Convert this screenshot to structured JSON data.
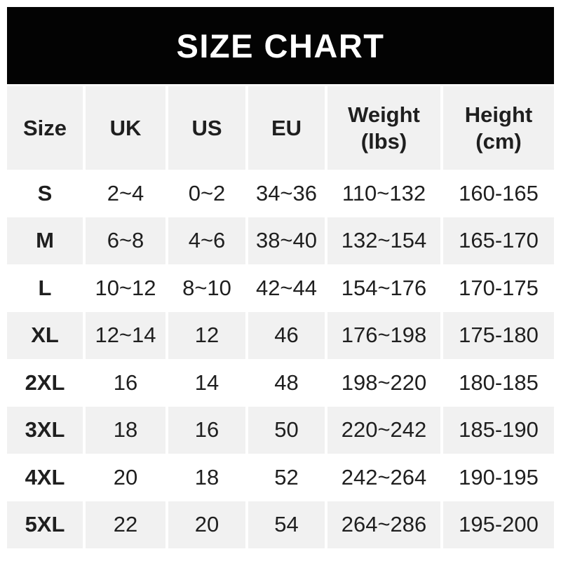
{
  "banner": {
    "title": "SIZE CHART"
  },
  "colors": {
    "banner_bg": "#030303",
    "banner_text": "#ffffff",
    "header_bg": "#f1f1f1",
    "row_alt_bg": "#f1f1f1",
    "row_bg": "#ffffff",
    "text": "#1f1f1f",
    "page_bg": "#ffffff"
  },
  "chart_data": {
    "type": "table",
    "title": "SIZE CHART",
    "columns": [
      "Size",
      "UK",
      "US",
      "EU",
      "Weight\n(lbs)",
      "Height\n(cm)"
    ],
    "rows": [
      [
        "S",
        "2~4",
        "0~2",
        "34~36",
        "110~132",
        "160-165"
      ],
      [
        "M",
        "6~8",
        "4~6",
        "38~40",
        "132~154",
        "165-170"
      ],
      [
        "L",
        "10~12",
        "8~10",
        "42~44",
        "154~176",
        "170-175"
      ],
      [
        "XL",
        "12~14",
        "12",
        "46",
        "176~198",
        "175-180"
      ],
      [
        "2XL",
        "16",
        "14",
        "48",
        "198~220",
        "180-185"
      ],
      [
        "3XL",
        "18",
        "16",
        "50",
        "220~242",
        "185-190"
      ],
      [
        "4XL",
        "20",
        "18",
        "52",
        "242~264",
        "190-195"
      ],
      [
        "5XL",
        "22",
        "20",
        "54",
        "264~286",
        "195-200"
      ]
    ]
  }
}
